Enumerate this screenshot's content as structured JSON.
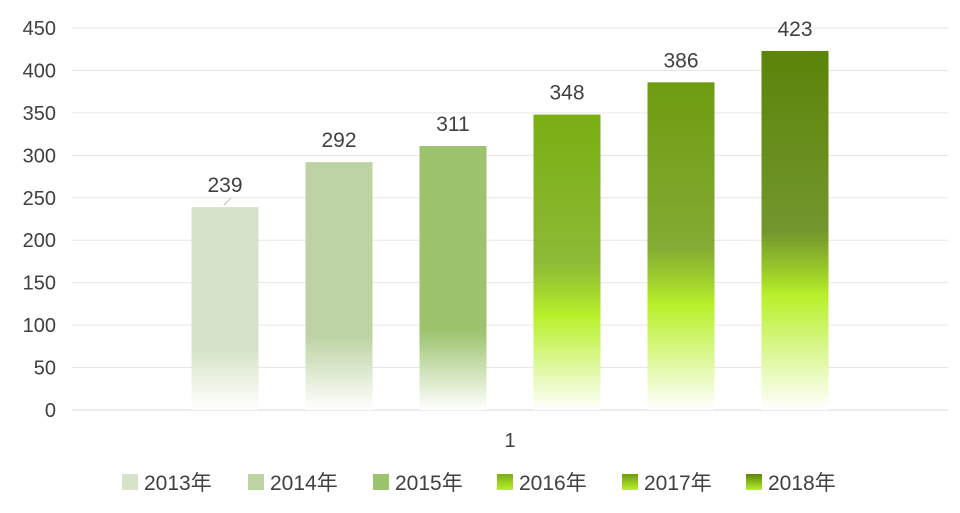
{
  "chart_data": {
    "type": "bar",
    "categories": [
      "1"
    ],
    "series": [
      {
        "name": "2013年",
        "values": [
          239
        ],
        "color_top": "#d6e3c8",
        "color_bottom": "#ffffff"
      },
      {
        "name": "2014年",
        "values": [
          292
        ],
        "color_top": "#bdd3a3",
        "color_bottom": "#ffffff"
      },
      {
        "name": "2015年",
        "values": [
          311
        ],
        "color_top": "#9dc36f",
        "color_bottom": "#ffffff"
      },
      {
        "name": "2016年",
        "values": [
          348
        ],
        "color_top": "#7aae13",
        "color_bottom": "#ffffff"
      },
      {
        "name": "2017年",
        "values": [
          386
        ],
        "color_top": "#6e9c10",
        "color_bottom": "#ffffff"
      },
      {
        "name": "2018年",
        "values": [
          423
        ],
        "color_top": "#5b8409",
        "color_bottom": "#ffffff"
      }
    ],
    "y_ticks": [
      "0",
      "50",
      "100",
      "150",
      "200",
      "250",
      "300",
      "350",
      "400",
      "450"
    ],
    "ylim": [
      0,
      450
    ],
    "grid": true,
    "legend_position": "bottom",
    "title": "",
    "xlabel": "",
    "ylabel": ""
  }
}
